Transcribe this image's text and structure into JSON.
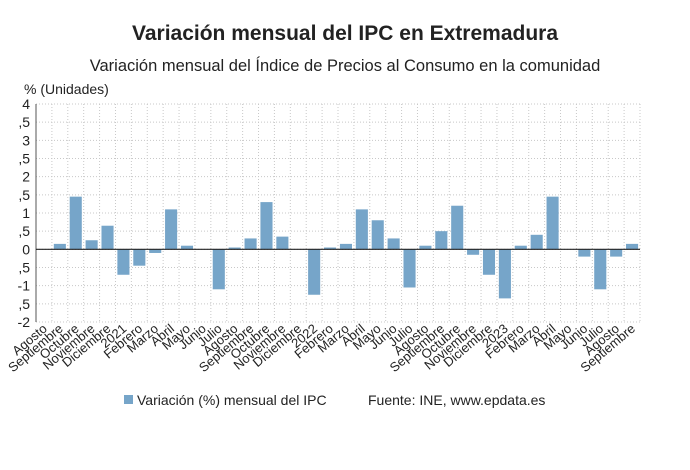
{
  "chart_data": {
    "type": "bar",
    "title": "Variación mensual del IPC en Extremadura",
    "subtitle": "Variación mensual del Índice de Precios al Consumo en la comunidad",
    "y_label": "% (Unidades)",
    "source": "Fuente: INE, www.epdata.es",
    "categories": [
      "Agosto",
      "Septiembre",
      "Octubre",
      "Noviembre",
      "Diciembre",
      "2021",
      "Febrero",
      "Marzo",
      "Abril",
      "Mayo",
      "Junio",
      "Julio",
      "Agosto",
      "Septiembre",
      "Octubre",
      "Noviembre",
      "Diciembre",
      "2022",
      "Febrero",
      "Marzo",
      "Abril",
      "Mayo",
      "Junio",
      "Julio",
      "Agosto",
      "Septiembre",
      "Octubre",
      "Noviembre",
      "Diciembre",
      "2023",
      "Febrero",
      "Marzo",
      "Abril",
      "Mayo",
      "Junio",
      "Julio",
      "Agosto",
      "Septiembre"
    ],
    "series": [
      {
        "name": "Variación (%) mensual del IPC",
        "color": "#76a5c9",
        "values": [
          0,
          0.15,
          1.45,
          0.25,
          0.65,
          -0.7,
          -0.45,
          -0.1,
          1.1,
          0.1,
          0,
          -1.1,
          0.05,
          0.3,
          1.3,
          0.35,
          0,
          -1.25,
          0.05,
          0.15,
          1.1,
          0.8,
          0.3,
          -1.05,
          0.1,
          0.5,
          1.2,
          -0.15,
          -0.7,
          -1.35,
          0.1,
          0.4,
          1.45,
          0,
          -0.2,
          -1.1,
          -0.2,
          0.15
        ]
      }
    ],
    "ylim": [
      -2,
      4
    ],
    "yticks": [
      {
        "value": -2,
        "label": "-2"
      },
      {
        "value": -1.5,
        "label": ",5"
      },
      -1,
      {
        "value": -0.5,
        "label": ",5"
      },
      0,
      {
        "value": 0.5,
        "label": ",5"
      },
      1,
      {
        "value": 1.5,
        "label": ",5"
      },
      2,
      {
        "value": 2.5,
        "label": ",5"
      },
      3,
      {
        "value": 3.5,
        "label": ",5"
      },
      4
    ],
    "grid": true
  }
}
